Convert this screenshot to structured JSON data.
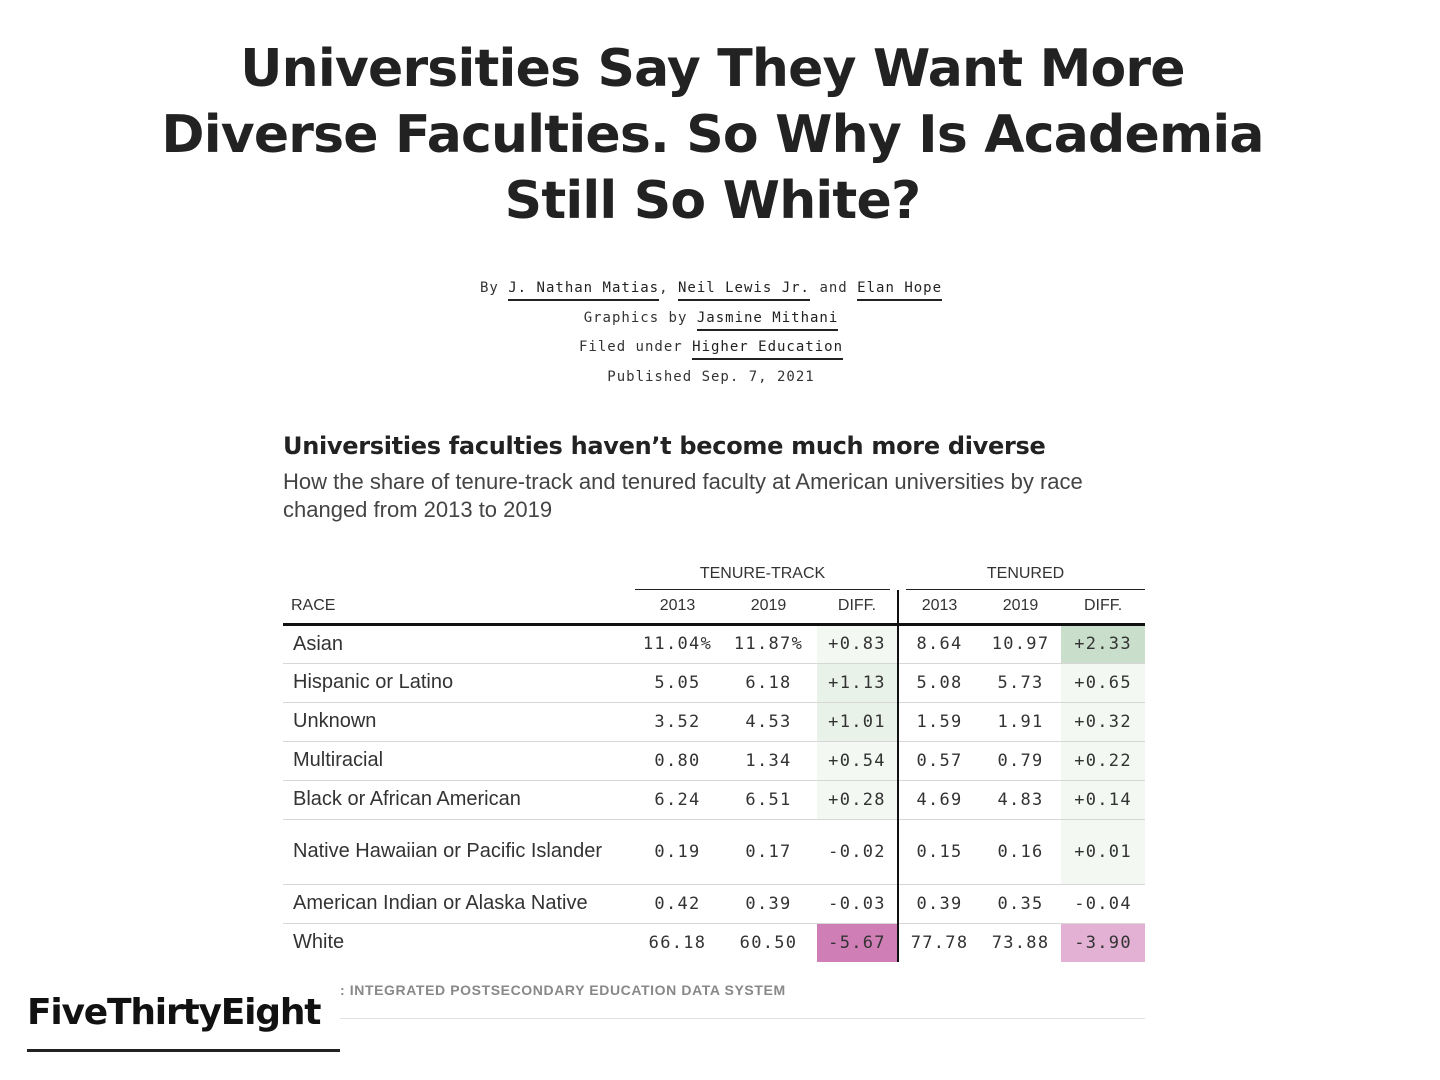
{
  "article": {
    "headline": "Universities Say They Want More Diverse Faculties. So Why Is Academia Still So White?",
    "byline_prefix": "By",
    "authors": [
      "J. Nathan Matias",
      "Neil Lewis Jr.",
      "Elan Hope"
    ],
    "sep_comma": ",",
    "sep_and": "and",
    "graphics_prefix": "Graphics by",
    "graphics_author": "Jasmine Mithani",
    "filed_prefix": "Filed under",
    "filed_topic": "Higher Education",
    "published": "Published Sep. 7, 2021"
  },
  "graphic": {
    "title": "Universities faculties haven’t become much more diverse",
    "subtitle": "How the share of tenure-track and tenured faculty at American universities by race changed from 2013 to 2019",
    "group_headers": [
      "TENURE-TRACK",
      "TENURED"
    ],
    "column_headers": [
      "RACE",
      "2013",
      "2019",
      "DIFF.",
      "2013",
      "2019",
      "DIFF."
    ],
    "rows": [
      {
        "race": "Asian",
        "tt_2013": "11.04%",
        "tt_2019": "11.87%",
        "tt_diff": "+0.83",
        "te_2013": "8.64",
        "te_2019": "10.97",
        "te_diff": "+2.33"
      },
      {
        "race": "Hispanic or Latino",
        "tt_2013": "5.05",
        "tt_2019": "6.18",
        "tt_diff": "+1.13",
        "te_2013": "5.08",
        "te_2019": "5.73",
        "te_diff": "+0.65"
      },
      {
        "race": "Unknown",
        "tt_2013": "3.52",
        "tt_2019": "4.53",
        "tt_diff": "+1.01",
        "te_2013": "1.59",
        "te_2019": "1.91",
        "te_diff": "+0.32"
      },
      {
        "race": "Multiracial",
        "tt_2013": "0.80",
        "tt_2019": "1.34",
        "tt_diff": "+0.54",
        "te_2013": "0.57",
        "te_2019": "0.79",
        "te_diff": "+0.22"
      },
      {
        "race": "Black or African American",
        "tt_2013": "6.24",
        "tt_2019": "6.51",
        "tt_diff": "+0.28",
        "te_2013": "4.69",
        "te_2019": "4.83",
        "te_diff": "+0.14"
      },
      {
        "race": "Native Hawaiian or Pacific Islander",
        "tt_2013": "0.19",
        "tt_2019": "0.17",
        "tt_diff": "-0.02",
        "te_2013": "0.15",
        "te_2019": "0.16",
        "te_diff": "+0.01"
      },
      {
        "race": "American Indian or Alaska Native",
        "tt_2013": "0.42",
        "tt_2019": "0.39",
        "tt_diff": "-0.03",
        "te_2013": "0.39",
        "te_2019": "0.35",
        "te_diff": "-0.04"
      },
      {
        "race": "White",
        "tt_2013": "66.18",
        "tt_2019": "60.50",
        "tt_diff": "-5.67",
        "te_2013": "77.78",
        "te_2019": "73.88",
        "te_diff": "-3.90"
      }
    ],
    "diff_colors": {
      "positive_strong": "#c9dfcc",
      "positive_light": "#e8f2e9",
      "positive_faint": "#f3f8f3",
      "negative_strong": "#cf7fb6",
      "negative_medium": "#e2b1d3",
      "neutral": "#ffffff"
    },
    "source": ": INTEGRATED POSTSECONDARY EDUCATION DATA SYSTEM"
  },
  "brand": {
    "name": "FiveThirtyEight"
  }
}
